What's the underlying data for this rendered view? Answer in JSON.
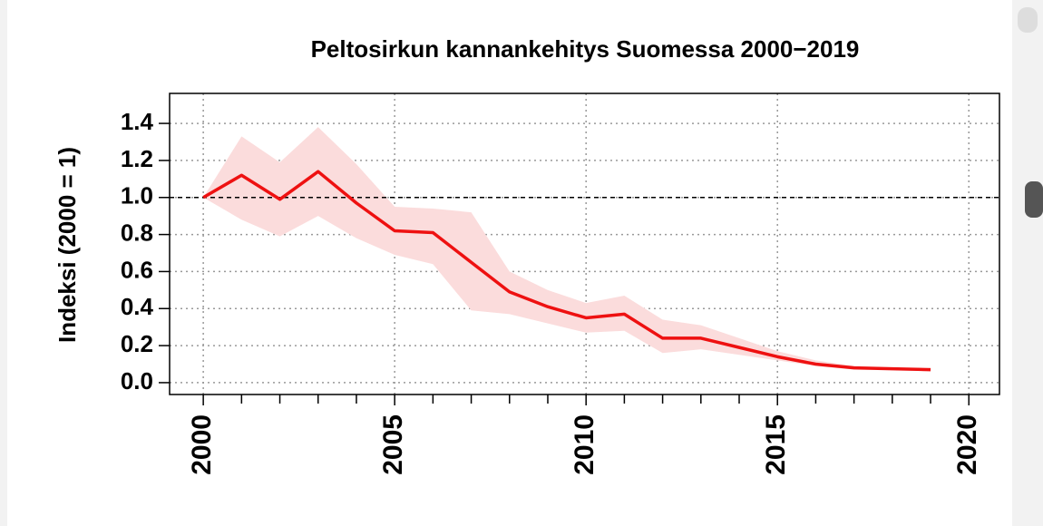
{
  "chart_data": {
    "type": "line",
    "title": "Peltosirkun kannankehitys Suomessa 2000−2019",
    "y_label": "Indeksi (2000 = 1)",
    "x": [
      2000,
      2001,
      2002,
      2003,
      2004,
      2005,
      2006,
      2007,
      2008,
      2009,
      2010,
      2011,
      2012,
      2013,
      2014,
      2015,
      2016,
      2017,
      2018,
      2019
    ],
    "series": [
      {
        "color": "#ee1111",
        "values": [
          1.0,
          1.12,
          0.99,
          1.14,
          0.97,
          0.82,
          0.81,
          0.65,
          0.49,
          0.41,
          0.35,
          0.37,
          0.24,
          0.24,
          0.19,
          0.14,
          0.1,
          0.08,
          0.075,
          0.07
        ]
      }
    ],
    "band": {
      "color": "#fbdcdc",
      "lower": [
        1.0,
        0.88,
        0.79,
        0.9,
        0.78,
        0.69,
        0.64,
        0.39,
        0.37,
        0.32,
        0.27,
        0.28,
        0.16,
        0.18,
        0.15,
        0.12,
        0.09,
        0.07,
        0.07,
        0.06
      ],
      "upper": [
        1.0,
        1.33,
        1.19,
        1.38,
        1.18,
        0.95,
        0.94,
        0.92,
        0.6,
        0.5,
        0.43,
        0.47,
        0.34,
        0.31,
        0.24,
        0.17,
        0.12,
        0.09,
        0.08,
        0.08
      ]
    },
    "reference_line": 1,
    "xlim": [
      1999.12,
      2020.8
    ],
    "ylim": [
      -0.064,
      1.562
    ],
    "xticks": [
      2000,
      2005,
      2010,
      2015,
      2020
    ],
    "xminorticks": [
      2001,
      2002,
      2003,
      2004,
      2006,
      2007,
      2008,
      2009,
      2011,
      2012,
      2013,
      2014,
      2016,
      2017,
      2018,
      2019
    ],
    "yticks": [
      {
        "value": 0,
        "label": "0.0"
      },
      {
        "value": 0.2,
        "label": "0.2"
      },
      {
        "value": 0.4,
        "label": "0.4"
      },
      {
        "value": 0.6,
        "label": "0.6"
      },
      {
        "value": 0.8,
        "label": "0.8"
      },
      {
        "value": 1,
        "label": "1.0"
      },
      {
        "value": 1.2,
        "label": "1.2"
      },
      {
        "value": 1.4,
        "label": "1.4"
      }
    ],
    "grid": true
  }
}
